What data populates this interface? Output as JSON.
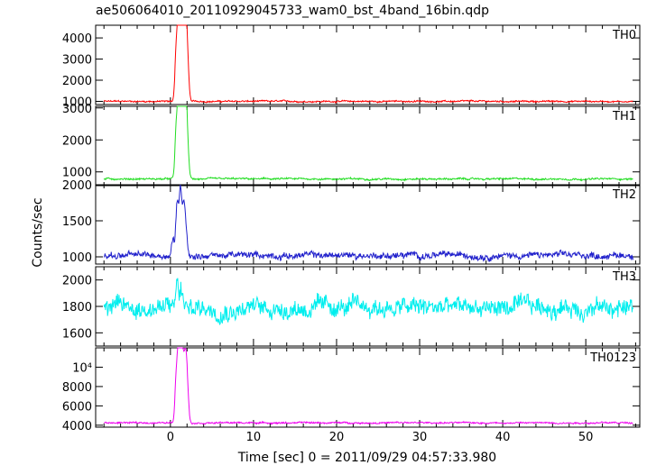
{
  "chart_data": {
    "type": "line",
    "title": "ae506064010_20110929045733_wam0_bst_4band_16bin.qdp",
    "xlabel": "Time [sec] 0 = 2011/09/29 04:57:33.980",
    "ylabel": "Counts/sec",
    "xlim": [
      -9,
      56.5
    ],
    "xticks": [
      0,
      10,
      20,
      30,
      40,
      50
    ],
    "grid": false,
    "panels": [
      {
        "name": "TH0",
        "color": "#ff0000",
        "ylim": [
          850,
          4600
        ],
        "yticks": [
          1000,
          2000,
          3000,
          4000
        ],
        "ytick_labels": [
          "1000",
          "2000",
          "3000",
          "4000"
        ],
        "baseline": 1000,
        "noise": 60,
        "peaks": [
          [
            0.7,
            2400
          ],
          [
            1.0,
            3650
          ],
          [
            1.3,
            2600
          ],
          [
            1.5,
            2000
          ],
          [
            1.7,
            2100
          ],
          [
            1.9,
            2650
          ],
          [
            2.1,
            1200
          ]
        ]
      },
      {
        "name": "TH1",
        "color": "#22dd22",
        "ylim": [
          570,
          3050
        ],
        "yticks": [
          1000,
          2000,
          3000
        ],
        "ytick_labels": [
          "1000",
          "2000",
          "3000"
        ],
        "baseline": 780,
        "noise": 45,
        "peaks": [
          [
            0.7,
            1500
          ],
          [
            1.0,
            2300
          ],
          [
            1.3,
            1800
          ],
          [
            1.5,
            1500
          ],
          [
            1.7,
            1450
          ],
          [
            1.9,
            1750
          ],
          [
            2.1,
            600
          ]
        ]
      },
      {
        "name": "TH2",
        "color": "#2222cc",
        "ylim": [
          900,
          2000
        ],
        "yticks": [
          1000,
          1500,
          2000
        ],
        "ytick_labels": [
          "1000",
          "1500",
          "2000"
        ],
        "baseline": 1020,
        "noise": 70,
        "peaks": [
          [
            0.3,
            250
          ],
          [
            0.8,
            700
          ],
          [
            1.2,
            950
          ],
          [
            1.6,
            700
          ],
          [
            1.9,
            350
          ]
        ]
      },
      {
        "name": "TH3",
        "color": "#00eeee",
        "ylim": [
          1500,
          2100
        ],
        "yticks": [
          1600,
          1800,
          2000
        ],
        "ytick_labels": [
          "1600",
          "1800",
          "2000"
        ],
        "baseline": 1790,
        "noise": 110,
        "peaks": [
          [
            0.8,
            200
          ],
          [
            1.3,
            150
          ]
        ]
      },
      {
        "name": "TH0123",
        "color": "#ee00ee",
        "ylim": [
          3800,
          12000
        ],
        "yticks": [
          4000,
          6000,
          8000,
          10000
        ],
        "ytick_labels": [
          "4000",
          "6000",
          "8000",
          "10⁴"
        ],
        "baseline": 4250,
        "noise": 130,
        "peaks": [
          [
            0.7,
            4500
          ],
          [
            1.0,
            7400
          ],
          [
            1.3,
            5200
          ],
          [
            1.5,
            3800
          ],
          [
            1.7,
            3500
          ],
          [
            1.9,
            5000
          ],
          [
            2.1,
            1800
          ]
        ]
      }
    ]
  }
}
